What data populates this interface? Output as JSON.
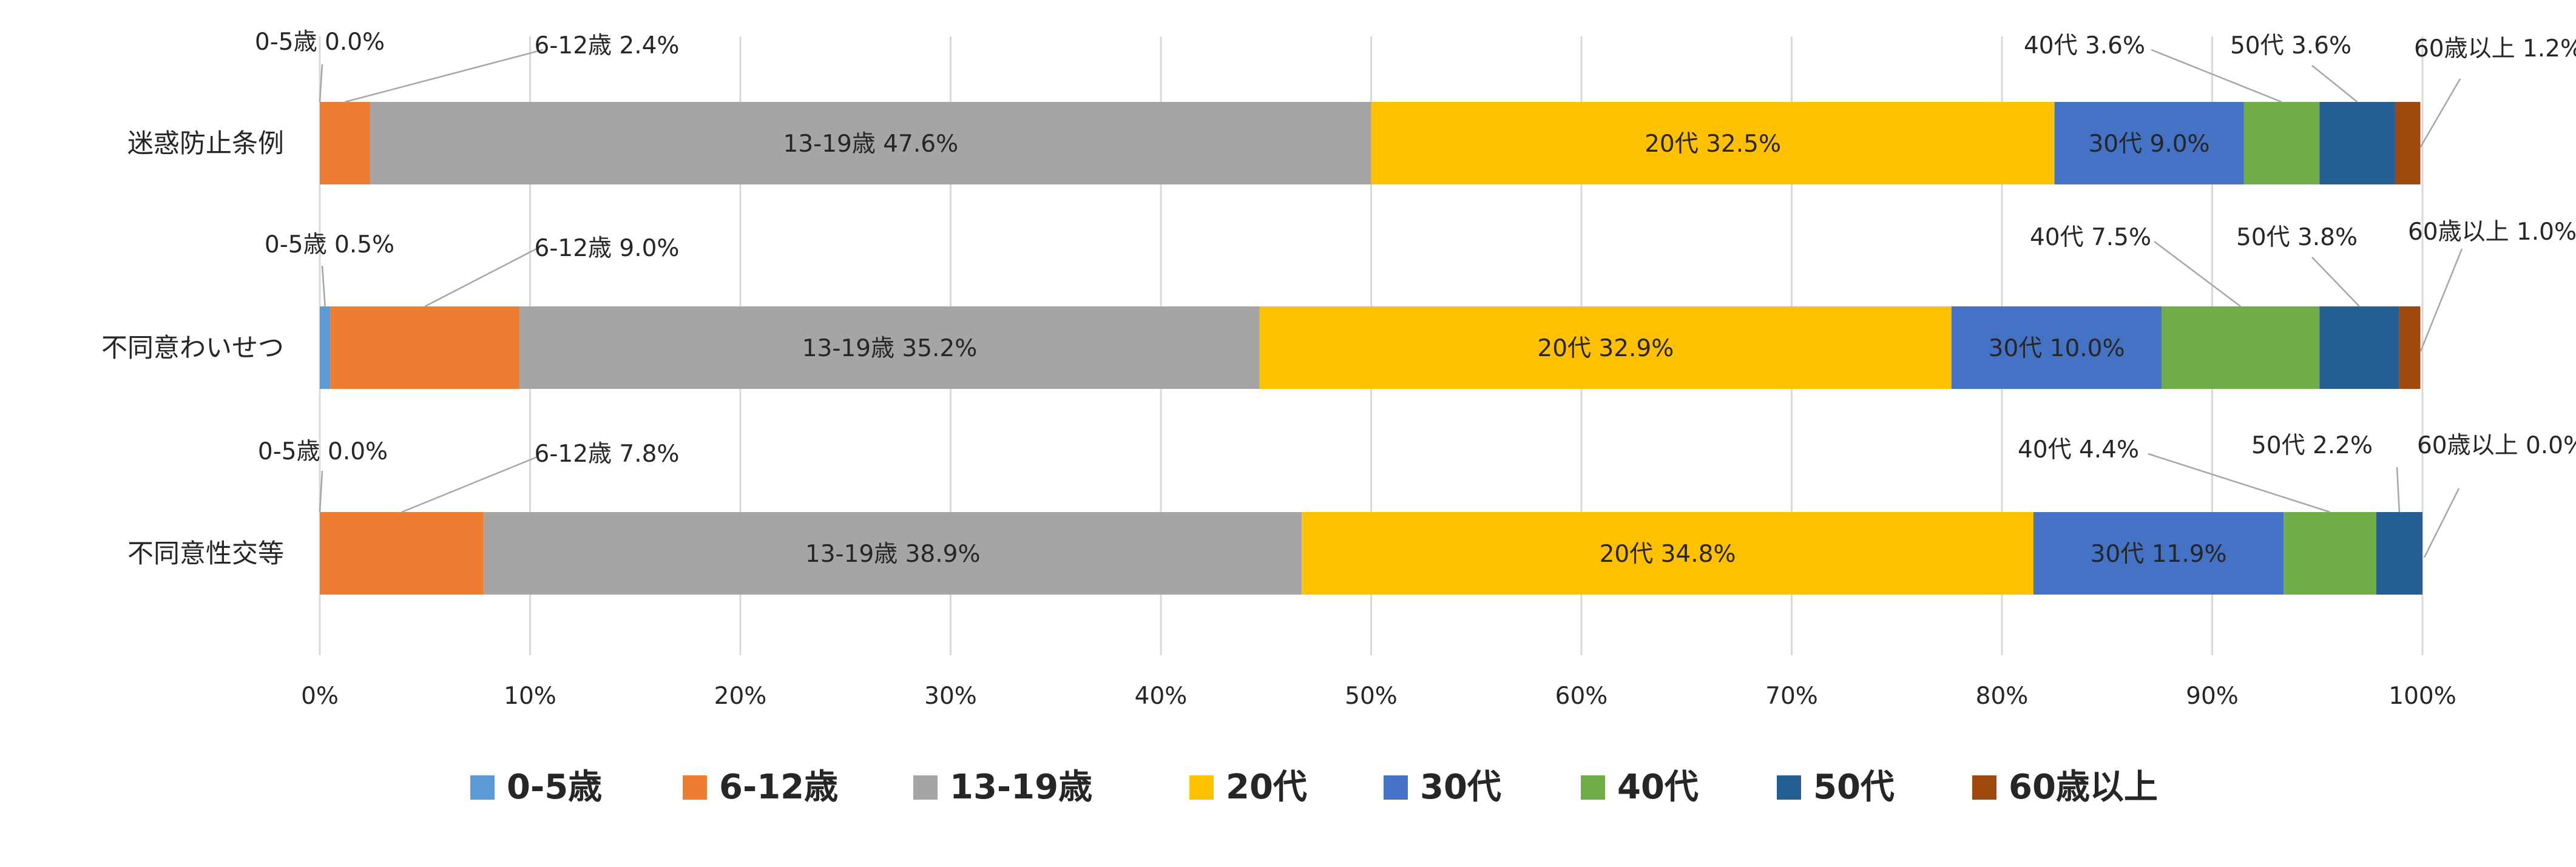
{
  "chart_data": {
    "type": "bar",
    "orientation": "horizontal",
    "stacked": "percent",
    "categories": [
      "迷惑防止条例",
      "不同意わいせつ",
      "不同意性交等"
    ],
    "series": [
      {
        "name": "0-5歳",
        "color": "#5b9bd5",
        "values": [
          0.0,
          0.5,
          0.0
        ],
        "labels": [
          "0-5歳 0.0%",
          "0-5歳 0.5%",
          "0-5歳 0.0%"
        ]
      },
      {
        "name": "6-12歳",
        "color": "#ed7d31",
        "values": [
          2.4,
          9.0,
          7.8
        ],
        "labels": [
          "6-12歳 2.4%",
          "6-12歳 9.0%",
          "6-12歳 7.8%"
        ]
      },
      {
        "name": "13-19歳",
        "color": "#a5a5a5",
        "values": [
          47.6,
          35.2,
          38.9
        ],
        "labels": [
          "13-19歳 47.6%",
          "13-19歳 35.2%",
          "13-19歳 38.9%"
        ]
      },
      {
        "name": "20代",
        "color": "#ffc000",
        "values": [
          32.5,
          32.9,
          34.8
        ],
        "labels": [
          "20代 32.5%",
          "20代 32.9%",
          "20代 34.8%"
        ]
      },
      {
        "name": "30代",
        "color": "#4472c4",
        "values": [
          9.0,
          10.0,
          11.9
        ],
        "labels": [
          "30代 9.0%",
          "30代 10.0%",
          "30代 11.9%"
        ]
      },
      {
        "name": "40代",
        "color": "#70ad47",
        "values": [
          3.6,
          7.5,
          4.4
        ],
        "labels": [
          "40代 3.6%",
          "40代 7.5%",
          "40代 4.4%"
        ]
      },
      {
        "name": "50代",
        "color": "#255e91",
        "values": [
          3.6,
          3.8,
          2.2
        ],
        "labels": [
          "50代 3.6%",
          "50代 3.8%",
          "50代 2.2%"
        ]
      },
      {
        "name": "60歳以上",
        "color": "#9e480e",
        "values": [
          1.2,
          1.0,
          0.0
        ],
        "labels": [
          "60歳以上 1.2%",
          "60歳以上 1.0%",
          "60歳以上 0.0%"
        ]
      }
    ],
    "xlim": [
      0,
      100
    ],
    "x_ticks": [
      "0%",
      "10%",
      "20%",
      "30%",
      "40%",
      "50%",
      "60%",
      "70%",
      "80%",
      "90%",
      "100%"
    ],
    "grid": true,
    "legend": "bottom",
    "title": "",
    "xlabel": "",
    "ylabel": ""
  }
}
